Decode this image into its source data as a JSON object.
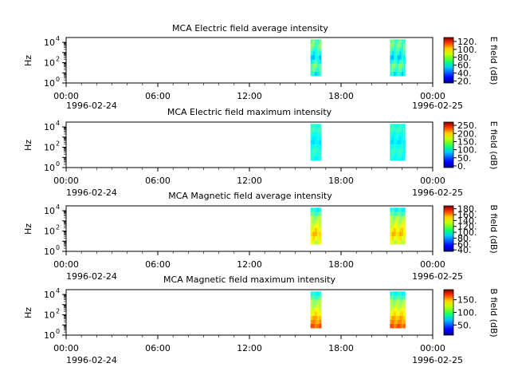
{
  "chart_data": [
    {
      "type": "heatmap",
      "title": "MCA  Electric field average intensity",
      "ylabel": "Hz",
      "colorbar_label": "E field (dB)",
      "colorbar_ticks": [
        "120.",
        "100.",
        "80.",
        "60.",
        "40.",
        "20."
      ],
      "colorbar_range": [
        15,
        130
      ],
      "y_tick_labels": [
        "10",
        "10",
        "10"
      ],
      "y_tick_exponents": [
        "4",
        "2",
        "0"
      ],
      "ylim_hz": [
        1,
        30000
      ],
      "yscale": "log",
      "x_tick_labels": [
        "00:00",
        "06:00",
        "12:00",
        "18:00",
        "00:00"
      ],
      "x_date_labels": [
        "1996-02-24",
        "1996-02-25"
      ],
      "xlim_hours": [
        0,
        24
      ],
      "data_intervals_hours": [
        [
          16.0,
          16.7
        ],
        [
          21.2,
          22.2
        ]
      ],
      "level_profile": [
        68,
        70,
        65,
        60,
        55,
        62,
        70,
        66,
        58
      ]
    },
    {
      "type": "heatmap",
      "title": "MCA  Electric field maximum intensity",
      "ylabel": "Hz",
      "colorbar_label": "E field (dB)",
      "colorbar_ticks": [
        "250.",
        "200.",
        "150.",
        "100.",
        "50.",
        "0."
      ],
      "colorbar_range": [
        -10,
        270
      ],
      "y_tick_labels": [
        "10",
        "10",
        "10"
      ],
      "y_tick_exponents": [
        "4",
        "2",
        "0"
      ],
      "ylim_hz": [
        1,
        30000
      ],
      "yscale": "log",
      "x_tick_labels": [
        "00:00",
        "06:00",
        "12:00",
        "18:00",
        "00:00"
      ],
      "x_date_labels": [
        "1996-02-24",
        "1996-02-25"
      ],
      "xlim_hours": [
        0,
        24
      ],
      "data_intervals_hours": [
        [
          16.0,
          16.7
        ],
        [
          21.2,
          22.2
        ]
      ],
      "level_profile": [
        105,
        110,
        100,
        95,
        90,
        100,
        108,
        104,
        98
      ]
    },
    {
      "type": "heatmap",
      "title": "MCA  Magnetic field average intensity",
      "ylabel": "Hz",
      "colorbar_label": "B field (dB)",
      "colorbar_ticks": [
        "180.",
        "160.",
        "140.",
        "120.",
        "100.",
        "80.",
        "60.",
        "40."
      ],
      "colorbar_range": [
        35,
        190
      ],
      "y_tick_labels": [
        "10",
        "10",
        "10"
      ],
      "y_tick_exponents": [
        "4",
        "2",
        "0"
      ],
      "ylim_hz": [
        1,
        30000
      ],
      "yscale": "log",
      "x_tick_labels": [
        "00:00",
        "06:00",
        "12:00",
        "18:00",
        "00:00"
      ],
      "x_date_labels": [
        "1996-02-24",
        "1996-02-25"
      ],
      "xlim_hours": [
        0,
        24
      ],
      "data_intervals_hours": [
        [
          16.0,
          16.7
        ],
        [
          21.2,
          22.2
        ]
      ],
      "level_profile": [
        95,
        105,
        118,
        122,
        128,
        135,
        140,
        132,
        125
      ]
    },
    {
      "type": "heatmap",
      "title": "MCA  Magnetic field maximum intensity",
      "ylabel": "Hz",
      "colorbar_label": "B field (dB)",
      "colorbar_ticks": [
        "150.",
        "100.",
        "50."
      ],
      "colorbar_range": [
        10,
        190
      ],
      "y_tick_labels": [
        "10",
        "10",
        "10"
      ],
      "y_tick_exponents": [
        "4",
        "2",
        "0"
      ],
      "ylim_hz": [
        1,
        30000
      ],
      "yscale": "log",
      "x_tick_labels": [
        "00:00",
        "06:00",
        "12:00",
        "18:00",
        "00:00"
      ],
      "x_date_labels": [
        "1996-02-24",
        "1996-02-25"
      ],
      "xlim_hours": [
        0,
        24
      ],
      "data_intervals_hours": [
        [
          16.0,
          16.7
        ],
        [
          21.2,
          22.2
        ]
      ],
      "level_profile": [
        80,
        90,
        105,
        110,
        118,
        125,
        135,
        140,
        150
      ]
    }
  ]
}
